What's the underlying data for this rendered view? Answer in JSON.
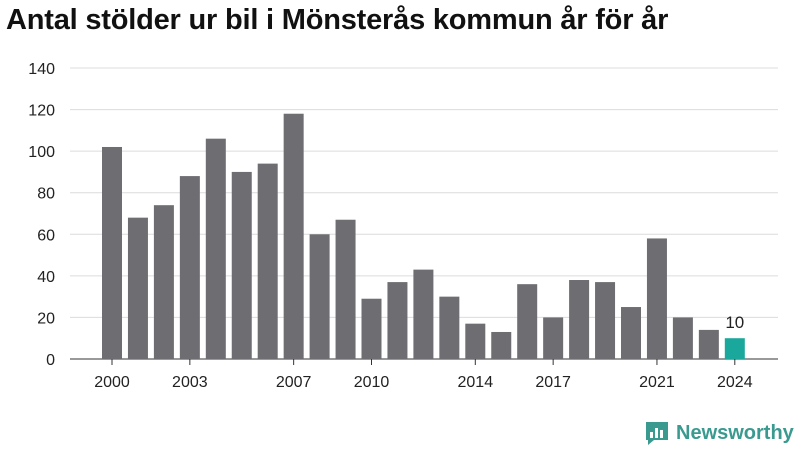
{
  "chart_data": {
    "type": "bar",
    "title": "Antal stölder ur bil i Mönsterås kommun år för år",
    "xlabel": "",
    "ylabel": "",
    "ylim": [
      0,
      140
    ],
    "yticks": [
      0,
      20,
      40,
      60,
      80,
      100,
      120,
      140
    ],
    "categories": [
      2000,
      2001,
      2002,
      2003,
      2004,
      2005,
      2006,
      2007,
      2008,
      2009,
      2010,
      2011,
      2012,
      2013,
      2014,
      2015,
      2016,
      2017,
      2018,
      2019,
      2020,
      2021,
      2022,
      2023,
      2024
    ],
    "values": [
      102,
      68,
      74,
      88,
      106,
      90,
      94,
      118,
      60,
      67,
      29,
      37,
      43,
      30,
      17,
      13,
      36,
      20,
      38,
      37,
      25,
      58,
      20,
      14,
      10
    ],
    "xtick_labels": [
      2000,
      2003,
      2007,
      2010,
      2014,
      2017,
      2021,
      2024
    ],
    "highlight": {
      "category": 2024,
      "label": "10",
      "color": "#1aa89c"
    },
    "bar_color": "#6e6d72",
    "grid": "horizontal"
  },
  "brand": {
    "name": "Newsworthy",
    "icon": "newsworthy-logo-icon",
    "color": "#3a9a8f"
  }
}
